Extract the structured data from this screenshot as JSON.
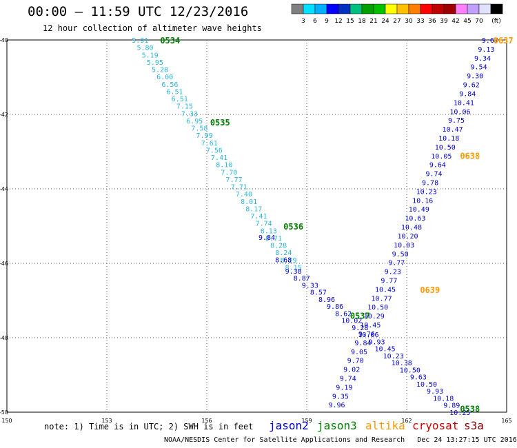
{
  "title": "00:00 – 11:59 UTC 12/23/2016",
  "subtitle": "12 hour collection of altimeter wave heights",
  "note": "note: 1) Time is in UTC; 2) SWH is in feet",
  "credit": "NOAA/NESDIS Center for Satellite Applications and Research   Dec 24 13:27:15 UTC 2016",
  "color_scale": {
    "colors": [
      "#808080",
      "#00e0ff",
      "#00b0ff",
      "#0000ff",
      "#0030c0",
      "#00c080",
      "#00a000",
      "#00c000",
      "#ffff00",
      "#ffc000",
      "#ff8000",
      "#ff0000",
      "#c00000",
      "#a00000",
      "#ff80ff",
      "#c0a0ff",
      "#e0e0ff",
      "#000000"
    ],
    "labels": [
      "3",
      "6",
      "9",
      "12",
      "15",
      "18",
      "21",
      "24",
      "27",
      "30",
      "33",
      "36",
      "39",
      "42",
      "45",
      "70",
      "(ft)"
    ]
  },
  "axes": {
    "x_ticks": [
      "150",
      "153",
      "156",
      "159",
      "162",
      "165"
    ],
    "y_ticks": [
      "-40",
      "-42",
      "-44",
      "-46",
      "-48",
      "-50"
    ]
  },
  "legend": [
    {
      "name": "jason2",
      "color": "#0000cc"
    },
    {
      "name": "jason3",
      "color": "#008000"
    },
    {
      "name": "altika",
      "color": "#ff9900"
    },
    {
      "name": "cryosat",
      "color": "#cc0000"
    },
    {
      "name": "s3a",
      "color": "#8b0000"
    }
  ],
  "time_labels": [
    {
      "text": "0534",
      "lon": 154.6,
      "lat": -40.0,
      "color": "#008000"
    },
    {
      "text": "0535",
      "lon": 156.1,
      "lat": -42.2,
      "color": "#008000"
    },
    {
      "text": "0536",
      "lon": 158.3,
      "lat": -45.0,
      "color": "#008000"
    },
    {
      "text": "0537",
      "lon": 160.3,
      "lat": -47.4,
      "color": "#008000"
    },
    {
      "text": "0538",
      "lon": 163.6,
      "lat": -49.9,
      "color": "#008000"
    },
    {
      "text": "0637",
      "lon": 164.6,
      "lat": -40.0,
      "color": "#ff9900"
    },
    {
      "text": "0638",
      "lon": 163.6,
      "lat": -43.1,
      "color": "#ff9900"
    },
    {
      "text": "0639",
      "lon": 162.4,
      "lat": -46.7,
      "color": "#ff9900"
    }
  ],
  "track_jason3_ne": {
    "color": "#29b6d8",
    "start": [
      154.0,
      -40.0
    ],
    "end": [
      158.6,
      -46.1
    ],
    "values": [
      "5.91",
      "5.80",
      "5.19",
      "5.95",
      "5.28",
      "6.00",
      "6.56",
      "6.51",
      "6.51",
      "7.15",
      "7.33",
      "6.95",
      "7.58",
      "7.99",
      "7.61",
      "7.56",
      "7.41",
      "8.10",
      "7.70",
      "7.77",
      "7.71",
      "7.40",
      "8.01",
      "8.17",
      "7.41",
      "7.74",
      "8.13",
      "8.71",
      "8.28",
      "8.24",
      "8.29",
      "8.15"
    ]
  },
  "track_jason3_sw": {
    "color": "#0000cc",
    "start": [
      158.6,
      -46.2
    ],
    "end": [
      163.6,
      -50.0
    ],
    "values": [
      "9.38",
      "8.87",
      "9.33",
      "8.57",
      "8.96",
      "9.86",
      "8.62",
      "10.02",
      "9.28",
      "10.06",
      "9.93",
      "10.45",
      "10.23",
      "10.38",
      "10.50",
      "9.63",
      "10.50",
      "9.93",
      "10.18",
      "9.89",
      "10.25"
    ]
  },
  "track_jason3_mid": {
    "color": "#0000cc",
    "start": [
      157.8,
      -45.3
    ],
    "end": [
      158.3,
      -45.9
    ],
    "values": [
      "9.84",
      "8.68"
    ]
  },
  "track_altika": {
    "color": "#0000cc",
    "start": [
      164.5,
      -40.0
    ],
    "end": [
      159.9,
      -49.8
    ],
    "values": [
      "9.67",
      "9.13",
      "9.34",
      "9.54",
      "9.30",
      "9.62",
      "9.84",
      "10.41",
      "10.06",
      "9.75",
      "10.47",
      "10.18",
      "10.50",
      "10.05",
      "9.64",
      "9.74",
      "9.78",
      "10.23",
      "10.16",
      "10.49",
      "10.63",
      "10.48",
      "10.20",
      "10.03",
      "9.50",
      "9.77",
      "9.23",
      "9.77",
      "10.45",
      "10.77",
      "10.50",
      "10.29",
      "10.45",
      "9.76",
      "9.84",
      "9.05",
      "9.70",
      "9.02",
      "9.74",
      "9.19",
      "9.35",
      "9.96"
    ]
  }
}
